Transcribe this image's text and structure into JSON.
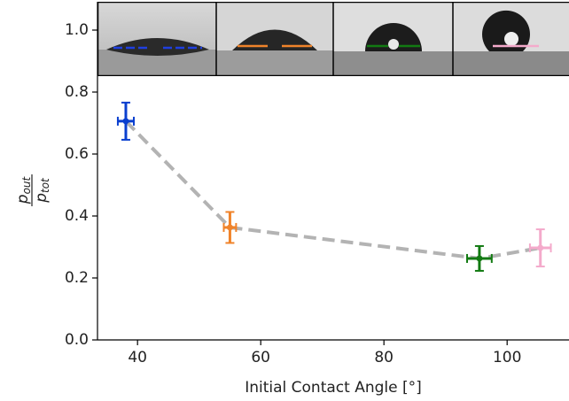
{
  "chart_data": {
    "type": "errorbar",
    "xlabel": "Initial Contact Angle [°]",
    "ylabel_numerator": "p",
    "ylabel_numerator_sub": "out",
    "ylabel_denominator": "p",
    "ylabel_denominator_sub": "tot",
    "x": [
      38.1,
      55,
      95.5,
      105.4
    ],
    "values": [
      0.706,
      0.363,
      0.263,
      0.297
    ],
    "x_err": [
      1.3,
      1,
      2,
      1.7
    ],
    "y_err": [
      0.06,
      0.05,
      0.04,
      0.06
    ],
    "colors": [
      "#0a3fcf",
      "#f0832a",
      "#127a12",
      "#f4aacb"
    ],
    "line_color": "#b3b3b3",
    "line_dashed": true,
    "xlim": [
      33.5,
      110
    ],
    "ylim": [
      0,
      1.09
    ],
    "xticks": [
      40,
      60,
      80,
      100
    ],
    "yticks": [
      {
        "value": 0,
        "label": "0.0"
      },
      0.2,
      0.4,
      0.6,
      0.8,
      {
        "value": 1,
        "label": "1.0"
      }
    ]
  }
}
